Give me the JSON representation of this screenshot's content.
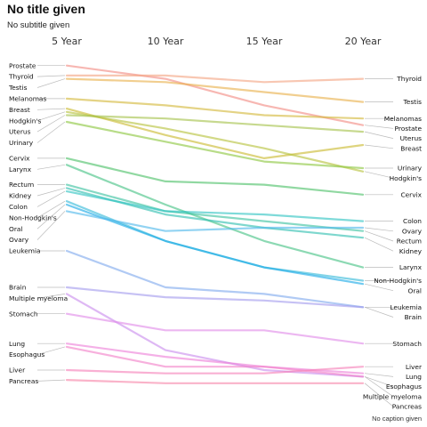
{
  "chart_data": {
    "type": "line",
    "title": "No title given",
    "subtitle": "No subtitle given",
    "caption": "No caption given",
    "x": [
      "5 Year",
      "10 Year",
      "15 Year",
      "20 Year"
    ],
    "left_labels_top_to_bottom": [
      "Prostate",
      "Thyroid",
      "Testis",
      "Melanomas",
      "Breast",
      "Hodgkin's",
      "Uterus",
      "Urinary",
      "Cervix",
      "Larynx",
      "Rectum",
      "Kidney",
      "Colon",
      "Non-Hodgkin's",
      "Oral",
      "Ovary",
      "Leukemia",
      "Brain",
      "Multiple myeloma",
      "Stomach",
      "Lung",
      "Esophagus",
      "Liver",
      "Pancreas"
    ],
    "right_labels_top_to_bottom": [
      "Thyroid",
      "Testis",
      "Melanomas",
      "Prostate",
      "Uterus",
      "Breast",
      "Urinary",
      "Hodgkin's",
      "Cervix",
      "Colon",
      "Ovary",
      "Rectum",
      "Kidney",
      "Larynx",
      "Non-Hodgkin's",
      "Oral",
      "Leukemia",
      "Brain",
      "Stomach",
      "Liver",
      "Lung",
      "Esophagus",
      "Multiple myeloma",
      "Pancreas"
    ],
    "series": [
      {
        "name": "Prostate",
        "color": "#f28b82",
        "values": [
          99,
          95,
          87,
          81
        ]
      },
      {
        "name": "Thyroid",
        "color": "#f4a582",
        "values": [
          96,
          96,
          94,
          95
        ]
      },
      {
        "name": "Testis",
        "color": "#e8b04a",
        "values": [
          95,
          94,
          91,
          88
        ]
      },
      {
        "name": "Melanomas",
        "color": "#d4b83a",
        "values": [
          89,
          87,
          84,
          83
        ]
      },
      {
        "name": "Breast",
        "color": "#c9b92e",
        "values": [
          86,
          78,
          71,
          75
        ]
      },
      {
        "name": "Hodgkin's",
        "color": "#b6c23b",
        "values": [
          85,
          80,
          74,
          67
        ]
      },
      {
        "name": "Uterus",
        "color": "#a5c24a",
        "values": [
          84,
          83,
          81,
          79
        ]
      },
      {
        "name": "Urinary",
        "color": "#8cc63f",
        "values": [
          82,
          76,
          70,
          68
        ]
      },
      {
        "name": "Cervix",
        "color": "#4cc068",
        "values": [
          71,
          64,
          63,
          60
        ]
      },
      {
        "name": "Larynx",
        "color": "#45c285",
        "values": [
          69,
          57,
          46,
          38
        ]
      },
      {
        "name": "Rectum",
        "color": "#3cc2a0",
        "values": [
          63,
          55,
          52,
          49
        ]
      },
      {
        "name": "Kidney",
        "color": "#2ebfb0",
        "values": [
          62,
          54,
          50,
          47
        ]
      },
      {
        "name": "Colon",
        "color": "#2fc3c1",
        "values": [
          61,
          55,
          54,
          52
        ]
      },
      {
        "name": "Non-Hodgkin's",
        "color": "#35b9d8",
        "values": [
          58,
          46,
          38,
          34
        ]
      },
      {
        "name": "Oral",
        "color": "#1aa9e6",
        "values": [
          57,
          46,
          38,
          33
        ]
      },
      {
        "name": "Ovary",
        "color": "#4fb8ea",
        "values": [
          55,
          49,
          50,
          50
        ]
      },
      {
        "name": "Leukemia",
        "color": "#7fa9ee",
        "values": [
          43,
          32,
          30,
          26
        ]
      },
      {
        "name": "Brain",
        "color": "#a39bee",
        "values": [
          32,
          29,
          28,
          26
        ]
      },
      {
        "name": "Multiple myeloma",
        "color": "#c98cee",
        "values": [
          30,
          13,
          7,
          5
        ]
      },
      {
        "name": "Stomach",
        "color": "#e08be8",
        "values": [
          24,
          19,
          19,
          15
        ]
      },
      {
        "name": "Lung",
        "color": "#ee7fd8",
        "values": [
          15,
          11,
          8,
          6
        ]
      },
      {
        "name": "Esophagus",
        "color": "#f27fc8",
        "values": [
          14,
          8,
          8,
          5
        ]
      },
      {
        "name": "Liver",
        "color": "#f57fb8",
        "values": [
          7,
          6,
          6,
          8
        ]
      },
      {
        "name": "Pancreas",
        "color": "#f785a8",
        "values": [
          4,
          3,
          3,
          3
        ]
      }
    ]
  }
}
